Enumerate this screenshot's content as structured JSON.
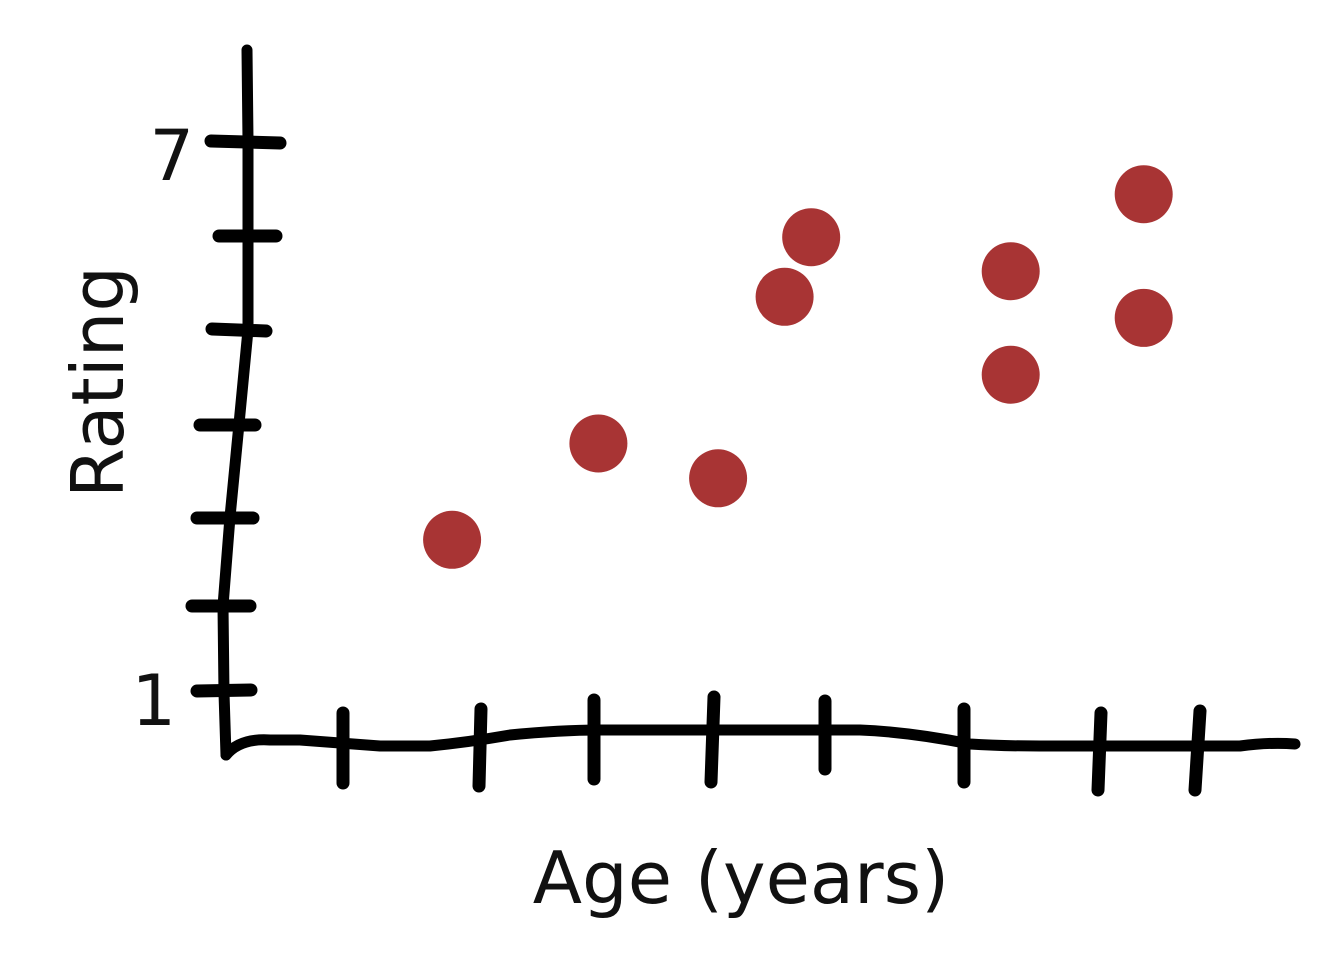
{
  "chart_data": {
    "type": "scatter",
    "title": "",
    "xlabel": "Age (years)",
    "ylabel": "Rating",
    "ytick_labels": [
      "1",
      "7"
    ],
    "ylim": [
      1,
      7
    ],
    "xlim": [
      0,
      8
    ],
    "grid": false,
    "legend": "none",
    "point_color": "#a83434",
    "points": [
      {
        "x": 1.7,
        "y": 2.65
      },
      {
        "x": 2.8,
        "y": 3.7
      },
      {
        "x": 3.7,
        "y": 3.32
      },
      {
        "x": 4.2,
        "y": 5.3
      },
      {
        "x": 4.4,
        "y": 5.95
      },
      {
        "x": 5.9,
        "y": 4.45
      },
      {
        "x": 5.9,
        "y": 5.58
      },
      {
        "x": 6.9,
        "y": 6.42
      },
      {
        "x": 6.9,
        "y": 5.07
      }
    ]
  }
}
